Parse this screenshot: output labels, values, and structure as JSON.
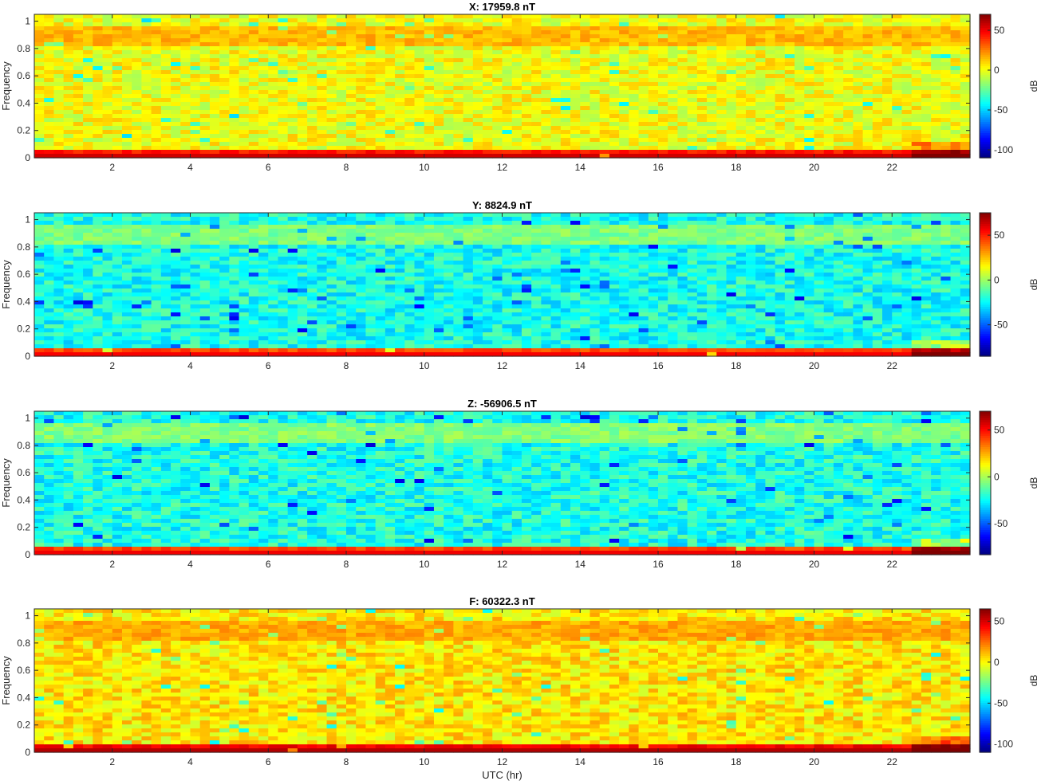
{
  "chart_data": [
    {
      "type": "heatmap",
      "title": "X: 17959.8 nT",
      "ylabel": "Frequency",
      "xlabel": "",
      "xlim": [
        0,
        24
      ],
      "ylim": [
        0,
        1.05
      ],
      "x_ticks": [
        "2",
        "4",
        "6",
        "8",
        "10",
        "12",
        "14",
        "16",
        "18",
        "20",
        "22"
      ],
      "y_ticks": [
        "0",
        "0.2",
        "0.4",
        "0.6",
        "0.8",
        "1"
      ],
      "colorbar": {
        "label": "dB",
        "range": [
          -110,
          70
        ],
        "ticks": [
          "50",
          "0",
          "-50",
          "-100"
        ]
      },
      "levels_db": {
        "low_band": 48,
        "body": 0,
        "top_band": 15
      },
      "colormap": "jet"
    },
    {
      "type": "heatmap",
      "title": "Y: 8824.9 nT",
      "ylabel": "Frequency",
      "xlabel": "",
      "xlim": [
        0,
        24
      ],
      "ylim": [
        0,
        1.05
      ],
      "x_ticks": [
        "2",
        "4",
        "6",
        "8",
        "10",
        "12",
        "14",
        "16",
        "18",
        "20",
        "22"
      ],
      "y_ticks": [
        "0",
        "0.2",
        "0.4",
        "0.6",
        "0.8",
        "1"
      ],
      "colorbar": {
        "label": "dB",
        "range": [
          -85,
          75
        ],
        "ticks": [
          "50",
          "0",
          "-50"
        ]
      },
      "levels_db": {
        "low_band": 48,
        "body": -22,
        "top_band": -5
      },
      "colormap": "jet"
    },
    {
      "type": "heatmap",
      "title": "Z: -56906.5 nT",
      "ylabel": "Frequency",
      "xlabel": "",
      "xlim": [
        0,
        24
      ],
      "ylim": [
        0,
        1.05
      ],
      "x_ticks": [
        "2",
        "4",
        "6",
        "8",
        "10",
        "12",
        "14",
        "16",
        "18",
        "20",
        "22"
      ],
      "y_ticks": [
        "0",
        "0.2",
        "0.4",
        "0.6",
        "0.8",
        "1"
      ],
      "colorbar": {
        "label": "dB",
        "range": [
          -83,
          70
        ],
        "ticks": [
          "50",
          "0",
          "-50"
        ]
      },
      "levels_db": {
        "low_band": 45,
        "body": -22,
        "top_band": -6
      },
      "colormap": "jet"
    },
    {
      "type": "heatmap",
      "title": "F: 60322.3 nT",
      "ylabel": "Frequency",
      "xlabel": "UTC (hr)",
      "xlim": [
        0,
        24
      ],
      "ylim": [
        0,
        1.05
      ],
      "x_ticks": [
        "2",
        "4",
        "6",
        "8",
        "10",
        "12",
        "14",
        "16",
        "18",
        "20",
        "22"
      ],
      "y_ticks": [
        "0",
        "0.2",
        "0.4",
        "0.6",
        "0.8",
        "1"
      ],
      "colorbar": {
        "label": "dB",
        "range": [
          -110,
          65
        ],
        "ticks": [
          "50",
          "0",
          "-50",
          "-100"
        ]
      },
      "levels_db": {
        "low_band": 48,
        "body": 3,
        "top_band": 14
      },
      "colormap": "jet"
    }
  ]
}
